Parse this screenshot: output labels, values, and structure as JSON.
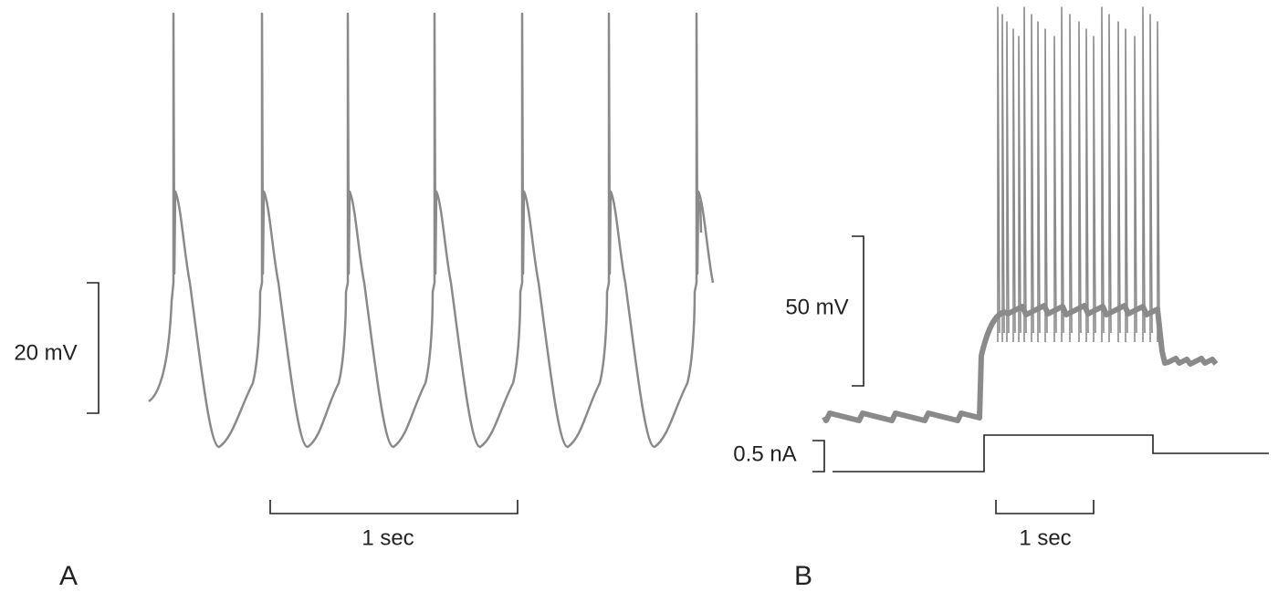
{
  "panel_a": {
    "label": "A",
    "scale_voltage": "20 mV",
    "scale_time": "1 sec"
  },
  "panel_b": {
    "label": "B",
    "scale_voltage": "50 mV",
    "scale_current": "0.5 nA",
    "scale_time": "1 sec"
  }
}
